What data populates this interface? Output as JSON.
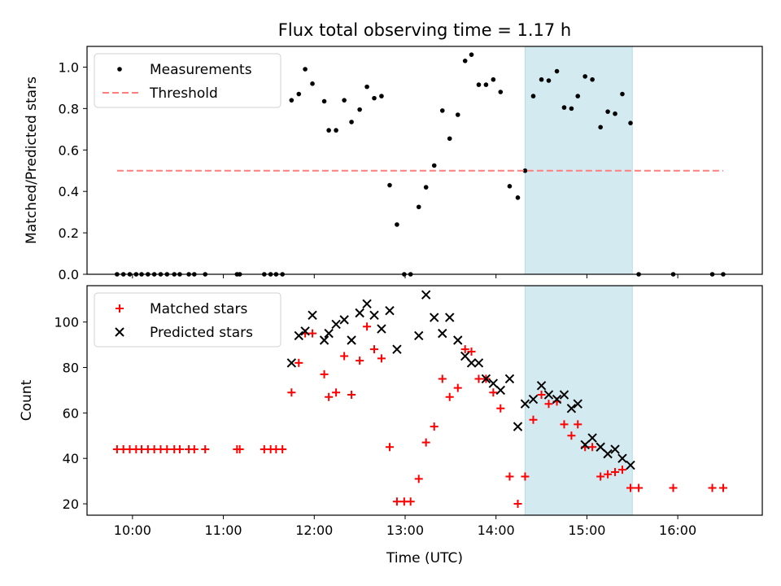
{
  "figure": {
    "title": "Flux total observing time = 1.17 h"
  },
  "colors": {
    "measurement": "#000000",
    "threshold": "#ff7f7f",
    "matched": "#ff0000",
    "predicted": "#000000",
    "highlight": "#d3eaf0"
  },
  "chart_data": [
    {
      "type": "scatter",
      "title": "Flux total observing time = 1.17 h",
      "xlabel": "",
      "ylabel": "Matched/Predicted stars",
      "xlim": [
        9.5,
        16.93
      ],
      "ylim": [
        0,
        1.1
      ],
      "xticks": [
        10,
        11,
        12,
        13,
        14,
        15,
        16
      ],
      "yticks": [
        0.0,
        0.2,
        0.4,
        0.6,
        0.8,
        1.0
      ],
      "ytick_labels": [
        "0.0",
        "0.2",
        "0.4",
        "0.6",
        "0.8",
        "1.0"
      ],
      "highlight_span": [
        14.32,
        15.5
      ],
      "legend": {
        "position": "upper-left",
        "entries": [
          "Measurements",
          "Threshold"
        ]
      },
      "series": [
        {
          "name": "Measurements",
          "kind": "dots",
          "points": [
            [
              9.83,
              0
            ],
            [
              9.9,
              0
            ],
            [
              9.97,
              0
            ],
            [
              10.04,
              0
            ],
            [
              10.1,
              0
            ],
            [
              10.17,
              0
            ],
            [
              10.24,
              0
            ],
            [
              10.31,
              0
            ],
            [
              10.38,
              0
            ],
            [
              10.46,
              0
            ],
            [
              10.52,
              0
            ],
            [
              10.62,
              0
            ],
            [
              10.68,
              0
            ],
            [
              10.8,
              0
            ],
            [
              11.15,
              0
            ],
            [
              11.18,
              0
            ],
            [
              11.45,
              0
            ],
            [
              11.52,
              0
            ],
            [
              11.58,
              0
            ],
            [
              11.65,
              0
            ],
            [
              11.75,
              0.84
            ],
            [
              11.83,
              0.87
            ],
            [
              11.9,
              0.99
            ],
            [
              11.98,
              0.92
            ],
            [
              12.11,
              0.835
            ],
            [
              12.16,
              0.695
            ],
            [
              12.24,
              0.695
            ],
            [
              12.33,
              0.84
            ],
            [
              12.41,
              0.735
            ],
            [
              12.5,
              0.795
            ],
            [
              12.58,
              0.905
            ],
            [
              12.66,
              0.85
            ],
            [
              12.74,
              0.86
            ],
            [
              12.83,
              0.43
            ],
            [
              12.91,
              0.24
            ],
            [
              12.99,
              0
            ],
            [
              13.06,
              0
            ],
            [
              13.15,
              0.325
            ],
            [
              13.23,
              0.42
            ],
            [
              13.32,
              0.525
            ],
            [
              13.41,
              0.79
            ],
            [
              13.49,
              0.655
            ],
            [
              13.58,
              0.77
            ],
            [
              13.66,
              1.03
            ],
            [
              13.73,
              1.06
            ],
            [
              13.81,
              0.915
            ],
            [
              13.89,
              0.915
            ],
            [
              13.97,
              0.94
            ],
            [
              14.05,
              0.88
            ],
            [
              14.15,
              0.425
            ],
            [
              14.24,
              0.37
            ],
            [
              14.32,
              0.5
            ],
            [
              14.41,
              0.86
            ],
            [
              14.5,
              0.94
            ],
            [
              14.58,
              0.935
            ],
            [
              14.67,
              0.98
            ],
            [
              14.75,
              0.805
            ],
            [
              14.83,
              0.8
            ],
            [
              14.9,
              0.86
            ],
            [
              14.98,
              0.955
            ],
            [
              15.06,
              0.94
            ],
            [
              15.15,
              0.71
            ],
            [
              15.23,
              0.785
            ],
            [
              15.31,
              0.775
            ],
            [
              15.39,
              0.87
            ],
            [
              15.48,
              0.73
            ],
            [
              15.57,
              0
            ],
            [
              15.95,
              0
            ],
            [
              16.38,
              0
            ],
            [
              16.5,
              0
            ]
          ]
        },
        {
          "name": "Threshold",
          "kind": "dashed-line",
          "points": [
            [
              9.83,
              0.5
            ],
            [
              16.5,
              0.5
            ]
          ]
        }
      ]
    },
    {
      "type": "scatter",
      "title": "",
      "xlabel": "Time (UTC)",
      "ylabel": "Count",
      "xlim": [
        9.5,
        16.93
      ],
      "ylim": [
        15,
        116
      ],
      "xticks": [
        10,
        11,
        12,
        13,
        14,
        15,
        16
      ],
      "xtick_labels": [
        "10:00",
        "11:00",
        "12:00",
        "13:00",
        "14:00",
        "15:00",
        "16:00"
      ],
      "yticks": [
        20,
        40,
        60,
        80,
        100
      ],
      "ytick_labels": [
        "20",
        "40",
        "60",
        "80",
        "100"
      ],
      "highlight_span": [
        14.32,
        15.5
      ],
      "legend": {
        "position": "upper-left",
        "entries": [
          "Matched stars",
          "Predicted stars"
        ]
      },
      "series": [
        {
          "name": "Matched stars",
          "kind": "plus",
          "points": [
            [
              9.83,
              44
            ],
            [
              9.9,
              44
            ],
            [
              9.97,
              44
            ],
            [
              10.04,
              44
            ],
            [
              10.1,
              44
            ],
            [
              10.17,
              44
            ],
            [
              10.24,
              44
            ],
            [
              10.31,
              44
            ],
            [
              10.38,
              44
            ],
            [
              10.46,
              44
            ],
            [
              10.52,
              44
            ],
            [
              10.62,
              44
            ],
            [
              10.68,
              44
            ],
            [
              10.8,
              44
            ],
            [
              11.15,
              44
            ],
            [
              11.18,
              44
            ],
            [
              11.45,
              44
            ],
            [
              11.52,
              44
            ],
            [
              11.58,
              44
            ],
            [
              11.65,
              44
            ],
            [
              11.75,
              69
            ],
            [
              11.83,
              82
            ],
            [
              11.9,
              95
            ],
            [
              11.98,
              95
            ],
            [
              12.11,
              77
            ],
            [
              12.16,
              67
            ],
            [
              12.24,
              69
            ],
            [
              12.33,
              85
            ],
            [
              12.41,
              68
            ],
            [
              12.5,
              83
            ],
            [
              12.58,
              98
            ],
            [
              12.66,
              88
            ],
            [
              12.74,
              84
            ],
            [
              12.83,
              45
            ],
            [
              12.91,
              21
            ],
            [
              12.99,
              21
            ],
            [
              13.06,
              21
            ],
            [
              13.15,
              31
            ],
            [
              13.23,
              47
            ],
            [
              13.32,
              54
            ],
            [
              13.41,
              75
            ],
            [
              13.49,
              67
            ],
            [
              13.58,
              71
            ],
            [
              13.66,
              88
            ],
            [
              13.73,
              87
            ],
            [
              13.81,
              75
            ],
            [
              13.89,
              75
            ],
            [
              13.97,
              69
            ],
            [
              14.05,
              62
            ],
            [
              14.15,
              32
            ],
            [
              14.24,
              20
            ],
            [
              14.32,
              32
            ],
            [
              14.41,
              57
            ],
            [
              14.5,
              68
            ],
            [
              14.58,
              64
            ],
            [
              14.67,
              65
            ],
            [
              14.75,
              55
            ],
            [
              14.83,
              50
            ],
            [
              14.9,
              55
            ],
            [
              14.98,
              45
            ],
            [
              15.06,
              45
            ],
            [
              15.15,
              32
            ],
            [
              15.23,
              33
            ],
            [
              15.31,
              34
            ],
            [
              15.39,
              35
            ],
            [
              15.48,
              27
            ],
            [
              15.57,
              27
            ],
            [
              15.95,
              27
            ],
            [
              16.38,
              27
            ],
            [
              16.5,
              27
            ]
          ]
        },
        {
          "name": "Predicted stars",
          "kind": "x",
          "points": [
            [
              11.75,
              82
            ],
            [
              11.83,
              94
            ],
            [
              11.9,
              96
            ],
            [
              11.98,
              103
            ],
            [
              12.11,
              92
            ],
            [
              12.16,
              95
            ],
            [
              12.24,
              99
            ],
            [
              12.33,
              101
            ],
            [
              12.41,
              92
            ],
            [
              12.5,
              104
            ],
            [
              12.58,
              108
            ],
            [
              12.66,
              103
            ],
            [
              12.74,
              97
            ],
            [
              12.83,
              105
            ],
            [
              12.91,
              88
            ],
            [
              13.15,
              94
            ],
            [
              13.23,
              112
            ],
            [
              13.32,
              102
            ],
            [
              13.41,
              95
            ],
            [
              13.49,
              102
            ],
            [
              13.58,
              92
            ],
            [
              13.66,
              85
            ],
            [
              13.73,
              82
            ],
            [
              13.81,
              82
            ],
            [
              13.89,
              75
            ],
            [
              13.97,
              73
            ],
            [
              14.05,
              70
            ],
            [
              14.15,
              75
            ],
            [
              14.24,
              54
            ],
            [
              14.32,
              64
            ],
            [
              14.41,
              66
            ],
            [
              14.5,
              72
            ],
            [
              14.58,
              68
            ],
            [
              14.67,
              66
            ],
            [
              14.75,
              68
            ],
            [
              14.83,
              62
            ],
            [
              14.9,
              64
            ],
            [
              14.98,
              46
            ],
            [
              15.06,
              49
            ],
            [
              15.15,
              45
            ],
            [
              15.23,
              42
            ],
            [
              15.31,
              44
            ],
            [
              15.39,
              40
            ],
            [
              15.48,
              37
            ]
          ]
        }
      ]
    }
  ]
}
